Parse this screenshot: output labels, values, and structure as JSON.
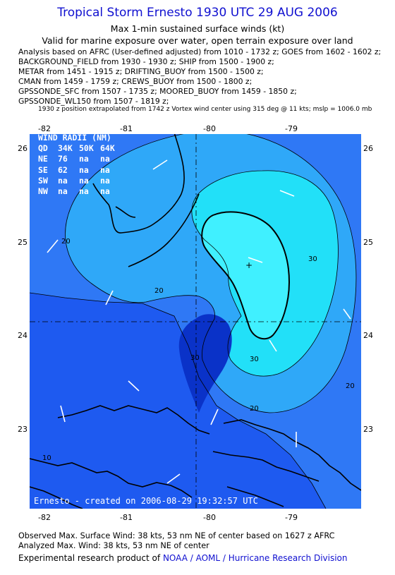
{
  "header": {
    "title": "Tropical Storm Ernesto 1930 UTC 29 AUG 2006",
    "subtitle1": "Max 1-min sustained surface winds (kt)",
    "subtitle2": "Valid for marine exposure over water, open terrain exposure over land"
  },
  "analysis_lines": [
    "Analysis based on  AFRC (User-defined adjusted) from 1010 - 1732 z;  GOES from 1602 - 1602 z;",
    "BACKGROUND_FIELD from 1930 - 1930 z;  SHIP from 1500 - 1900 z;",
    "METAR from 1451 - 1915 z;  DRIFTING_BUOY from 1500 - 1500 z;",
    "CMAN from 1459 - 1759 z;  CREWS_BUOY from 1500 - 1800 z;",
    "GPSSONDE_SFC from 1507 - 1735 z;  MOORED_BUOY from 1459 - 1850 z;",
    "GPSSONDE_WL150 from 1507 - 1819 z;"
  ],
  "position_note": "1930 z position extrapolated from 1742 z Vortex wind center using 315 deg @ 11 kts; mslp = 1006.0 mb",
  "axes": {
    "lon_ticks": [
      "-82",
      "-81",
      "-80",
      "-79"
    ],
    "lat_ticks": [
      "26",
      "25",
      "24",
      "23"
    ]
  },
  "wind_radii": {
    "title": "WIND RADII (NM)",
    "header": [
      "QD",
      "34K",
      "50K",
      "64K"
    ],
    "rows": [
      [
        "NE",
        "76",
        "na",
        "na"
      ],
      [
        "SE",
        "62",
        "na",
        "na"
      ],
      [
        "SW",
        "na",
        "na",
        "na"
      ],
      [
        "NW",
        "na",
        "na",
        "na"
      ]
    ]
  },
  "contour_labels": {
    "c20_a": "20",
    "c20_b": "20",
    "c20_c": "20",
    "c20_d": "20",
    "c30_a": "30",
    "c30_b": "30",
    "c30_c": "30",
    "c10": "10"
  },
  "credit": "Ernesto - created on 2006-08-29 19:32:57 UTC",
  "footer": {
    "observed": "Observed Max. Surface Wind: 38 kts, 53 nm NE of center based on 1627 z AFRC",
    "analyzed": "Analyzed Max. Wind: 38 kts, 53 nm NE of center",
    "experimental_prefix": "Experimental research product of",
    "link": "NOAA / AOML / Hurricane Research Division"
  },
  "colors": {
    "title_blue": "#1010d0",
    "band_below10": "#1e5af0",
    "band_10_20": "#2f78f5",
    "band_20_30": "#2fa8f8",
    "band_above30": "#22e0f8",
    "center_core": "#0a32c8"
  }
}
